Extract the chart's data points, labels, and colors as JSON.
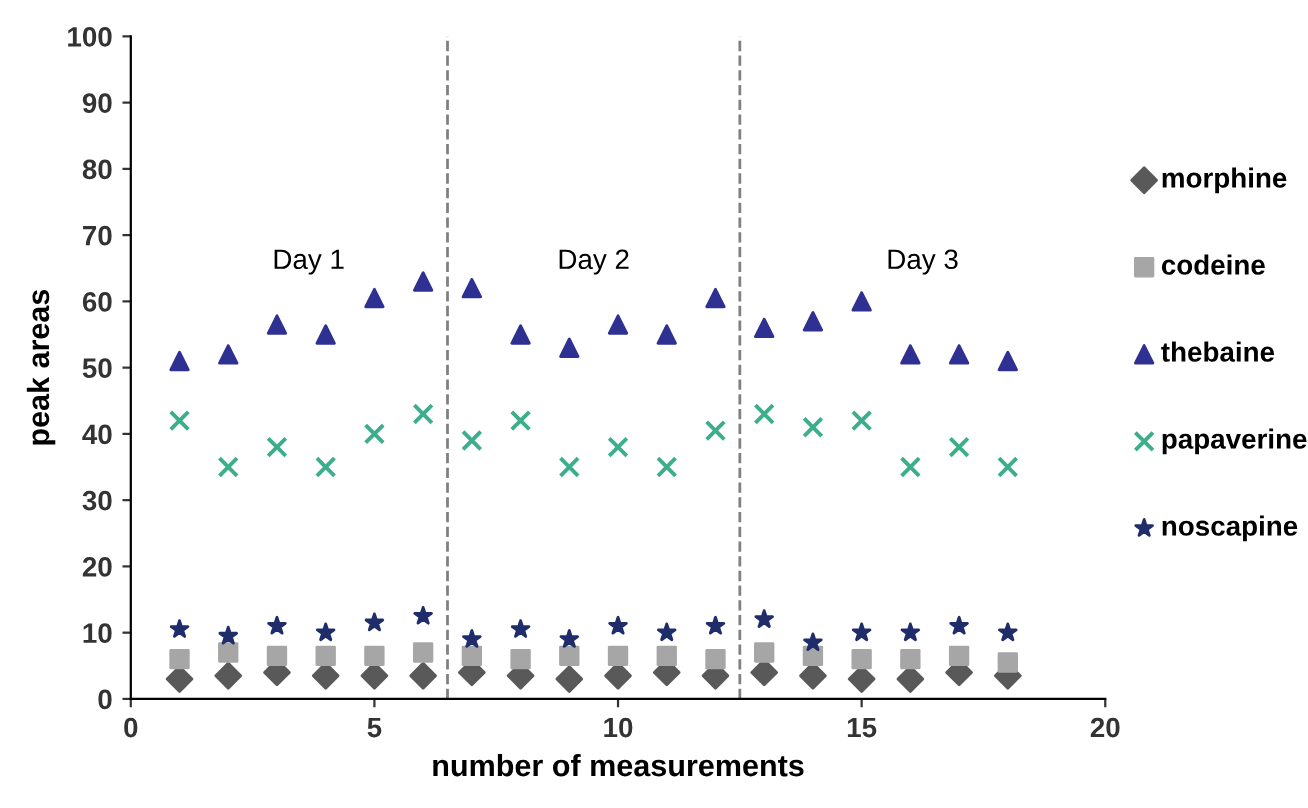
{
  "chart_data": {
    "type": "scatter",
    "xlabel": "number of measurements",
    "ylabel": "peak areas",
    "x": [
      1,
      2,
      3,
      4,
      5,
      6,
      7,
      8,
      9,
      10,
      11,
      12,
      13,
      14,
      15,
      16,
      17,
      18
    ],
    "series": [
      {
        "name": "morphine",
        "color": "#595959",
        "marker": "diamond",
        "values": [
          3,
          3.5,
          4,
          3.5,
          3.5,
          3.5,
          4,
          3.5,
          3,
          3.5,
          4,
          3.5,
          4,
          3.5,
          3,
          3,
          4,
          3.5
        ]
      },
      {
        "name": "codeine",
        "color": "#a6a6a6",
        "marker": "square",
        "values": [
          6,
          7,
          6.5,
          6.5,
          6.5,
          7,
          6.5,
          6,
          6.5,
          6.5,
          6.5,
          6,
          7,
          6.5,
          6,
          6,
          6.5,
          5.5
        ]
      },
      {
        "name": "thebaine",
        "color": "#2e3192",
        "marker": "triangle",
        "values": [
          51,
          52,
          56.5,
          55,
          60.5,
          63,
          62,
          55,
          53,
          56.5,
          55,
          60.5,
          56,
          57,
          60,
          52,
          52,
          51
        ]
      },
      {
        "name": "papaverine",
        "color": "#3cae8c",
        "marker": "cross",
        "values": [
          42,
          35,
          38,
          35,
          40,
          43,
          39,
          42,
          35,
          38,
          35,
          40.5,
          43,
          41,
          42,
          35,
          38,
          35
        ]
      },
      {
        "name": "noscapine",
        "color": "#1f2d6b",
        "marker": "star",
        "values": [
          10.5,
          9.5,
          11,
          10,
          11.5,
          12.5,
          9,
          10.5,
          9,
          11,
          10,
          11,
          12,
          8.5,
          10,
          10,
          11,
          10
        ]
      }
    ],
    "ref_lines": [
      {
        "axis": "x",
        "value": 6.5,
        "color": "#808080",
        "line_style": "dashed"
      },
      {
        "axis": "x",
        "value": 12.5,
        "color": "#808080",
        "line_style": "dashed"
      }
    ],
    "annotations": [
      "Day 1",
      "Day 2",
      "Day 3"
    ],
    "xlim": [
      0,
      20
    ],
    "xticks": [
      0,
      5,
      10,
      15,
      20
    ],
    "ylim": [
      0,
      100
    ],
    "yticks": [
      0,
      10,
      20,
      30,
      40,
      50,
      60,
      70,
      80,
      90,
      100
    ],
    "grid": false,
    "legend": "right"
  }
}
